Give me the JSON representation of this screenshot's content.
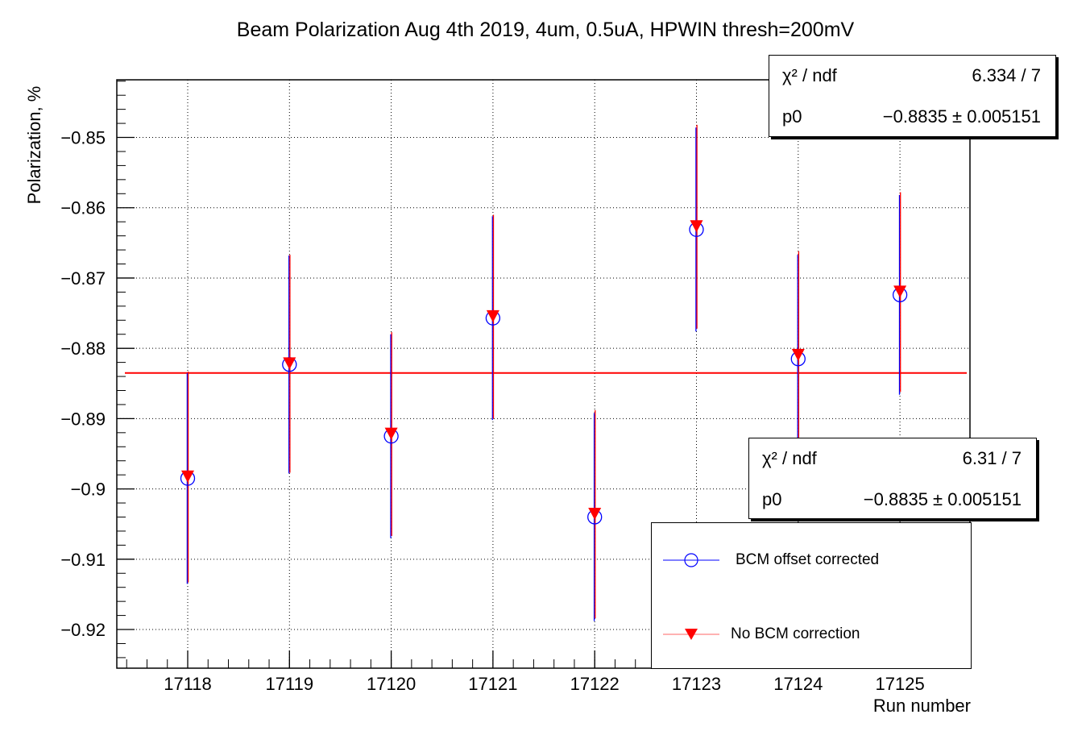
{
  "chart_data": {
    "type": "scatter",
    "title": "Beam Polarization Aug 4th 2019, 4um, 0.5uA, HPWIN thresh=200mV",
    "xlabel": "Run number",
    "ylabel": "Polarization, %",
    "categories": [
      "17118",
      "17119",
      "17120",
      "17121",
      "17122",
      "17123",
      "17124",
      "17125"
    ],
    "ylim": [
      -0.9255,
      -0.8418
    ],
    "yticks": [
      -0.85,
      -0.86,
      -0.87,
      -0.88,
      -0.89,
      -0.9,
      -0.91,
      -0.92
    ],
    "ytick_labels": [
      "−0.85",
      "−0.86",
      "−0.87",
      "−0.88",
      "−0.89",
      "−0.9",
      "−0.91",
      "−0.92"
    ],
    "grid": true,
    "series": [
      {
        "name": "BCM offset corrected",
        "color": "#0000ff",
        "marker": "open-circle",
        "values": [
          -0.8985,
          -0.8823,
          -0.8925,
          -0.8757,
          -0.904,
          -0.8631,
          -0.8815,
          -0.8724
        ],
        "errors": [
          0.015,
          0.0155,
          0.0145,
          0.0145,
          0.0148,
          0.0145,
          0.0148,
          0.0142
        ]
      },
      {
        "name": "No BCM correction",
        "color": "#ff0000",
        "marker": "filled-down-triangle",
        "values": [
          -0.8983,
          -0.8822,
          -0.8922,
          -0.8755,
          -0.9036,
          -0.8627,
          -0.881,
          -0.872
        ],
        "errors": [
          0.015,
          0.0155,
          0.0145,
          0.0145,
          0.0148,
          0.0145,
          0.0148,
          0.0142
        ]
      }
    ],
    "fit_line": {
      "value": -0.8835,
      "color": "#ff0000"
    },
    "legend_position": "bottom-right"
  },
  "fit_boxes": [
    {
      "chi2_label": "χ² / ndf",
      "chi2_value": "6.334 / 7",
      "p0_label": "p0",
      "p0_value": "−0.8835 ± 0.005151"
    },
    {
      "chi2_label": "χ² / ndf",
      "chi2_value": "6.31 / 7",
      "p0_label": "p0",
      "p0_value": "−0.8835 ± 0.005151"
    }
  ],
  "legend": {
    "items": [
      "BCM offset corrected",
      "No BCM correction"
    ]
  }
}
